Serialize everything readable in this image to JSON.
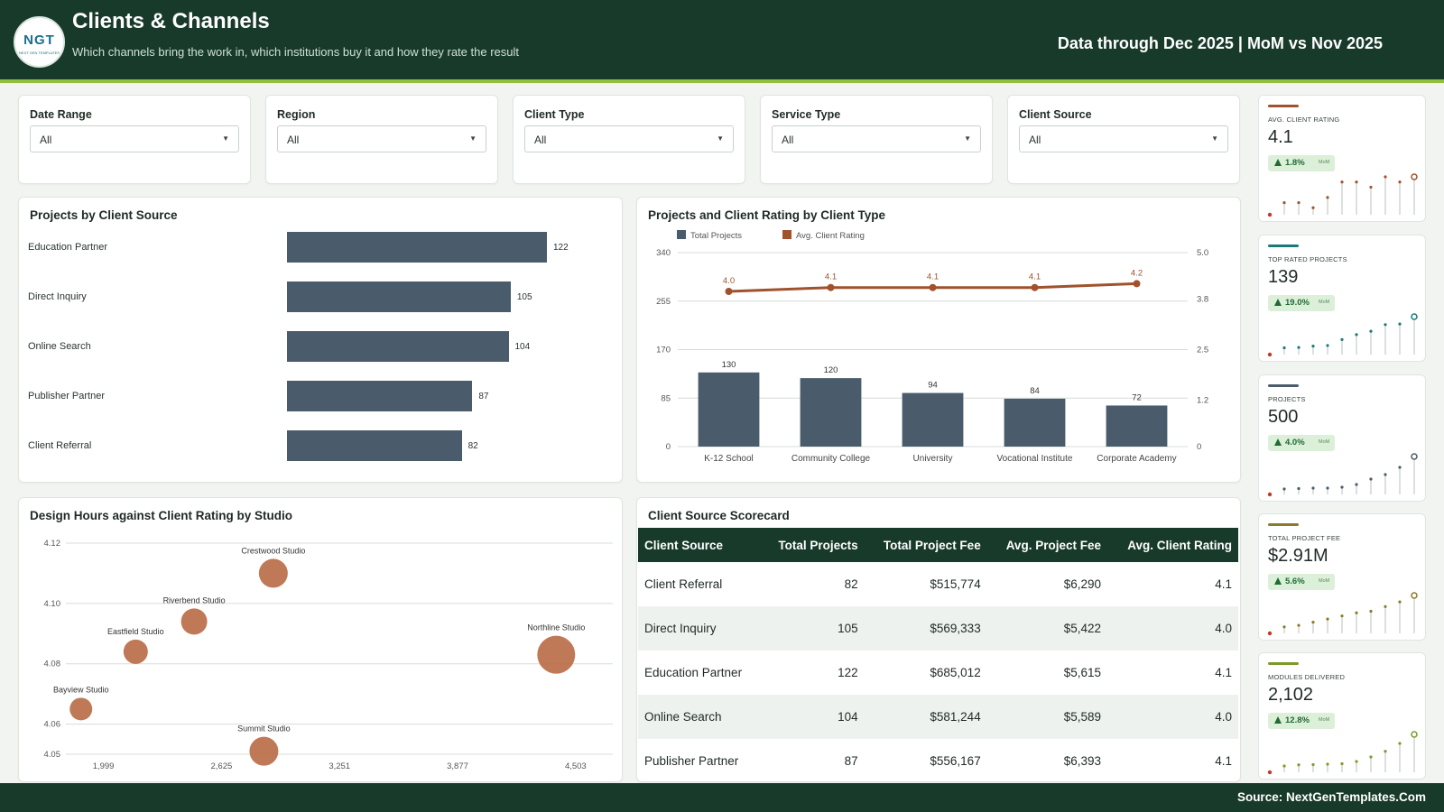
{
  "header": {
    "logo_text": "NGT",
    "logo_sub": "NEXT GEN TEMPLATES",
    "title": "Clients & Channels",
    "subtitle": "Which channels bring the work in, which institutions buy it and how they rate the result",
    "data_through": "Data through Dec 2025 | MoM vs Nov 2025"
  },
  "filters": [
    {
      "label": "Date Range",
      "value": "All"
    },
    {
      "label": "Region",
      "value": "All"
    },
    {
      "label": "Client Type",
      "value": "All"
    },
    {
      "label": "Service Type",
      "value": "All"
    },
    {
      "label": "Client Source",
      "value": "All"
    }
  ],
  "panels": {
    "bar_title": "Projects by Client Source",
    "combo_title": "Projects and Client Rating by Client Type",
    "bubble_title": "Design Hours against Client Rating by Studio",
    "table_title": "Client Source Scorecard"
  },
  "colors": {
    "header_bg": "#183a2a",
    "accent_line": "#8fbf3c",
    "bar": "#4a5c6b",
    "rating_line": "#a0522d",
    "bubble": "#b86a45"
  },
  "chart_data": [
    {
      "type": "bar",
      "orientation": "horizontal",
      "title": "Projects by Client Source",
      "categories": [
        "Education Partner",
        "Direct Inquiry",
        "Online Search",
        "Publisher Partner",
        "Client Referral"
      ],
      "values": [
        122,
        105,
        104,
        87,
        82
      ]
    },
    {
      "type": "bar",
      "title": "Projects and Client Rating by Client Type",
      "categories": [
        "K-12 School",
        "Community College",
        "University",
        "Vocational Institute",
        "Corporate Academy"
      ],
      "series": [
        {
          "name": "Total Projects",
          "type": "bar",
          "axis": "left",
          "values": [
            130,
            120,
            94,
            84,
            72
          ]
        },
        {
          "name": "Avg. Client Rating",
          "type": "line",
          "axis": "right",
          "values": [
            4.0,
            4.1,
            4.1,
            4.1,
            4.2
          ]
        }
      ],
      "ylim": [
        0,
        340
      ],
      "yticks": [
        "0",
        "85",
        "170",
        "255",
        "340"
      ],
      "y2lim": [
        0,
        5.0
      ],
      "y2ticks": [
        "0",
        "1.2",
        "2.5",
        "3.8",
        "5.0"
      ],
      "legend": "top-left",
      "grid": true
    },
    {
      "type": "scatter",
      "title": "Design Hours against Client Rating by Studio",
      "xlim": [
        1800,
        4700
      ],
      "xticks": [
        "1,999",
        "2,625",
        "3,251",
        "3,877",
        "4,503"
      ],
      "ylim": [
        4.05,
        4.12
      ],
      "yticks": [
        "4.05",
        "4.06",
        "4.08",
        "4.10",
        "4.12"
      ],
      "grid": true,
      "points": [
        {
          "label": "Crestwood Studio",
          "x": 2900,
          "y": 4.11,
          "size": 32
        },
        {
          "label": "Riverbend Studio",
          "x": 2480,
          "y": 4.094,
          "size": 29
        },
        {
          "label": "Eastfield Studio",
          "x": 2170,
          "y": 4.084,
          "size": 27
        },
        {
          "label": "Northline Studio",
          "x": 4400,
          "y": 4.083,
          "size": 42
        },
        {
          "label": "Bayview Studio",
          "x": 1880,
          "y": 4.065,
          "size": 25
        },
        {
          "label": "Summit Studio",
          "x": 2850,
          "y": 4.051,
          "size": 32
        }
      ]
    }
  ],
  "table": {
    "columns": [
      "Client Source",
      "Total Projects",
      "Total Project Fee",
      "Avg. Project Fee",
      "Avg. Client Rating"
    ],
    "rows": [
      [
        "Client Referral",
        "82",
        "$515,774",
        "$6,290",
        "4.1"
      ],
      [
        "Direct Inquiry",
        "105",
        "$569,333",
        "$5,422",
        "4.0"
      ],
      [
        "Education Partner",
        "122",
        "$685,012",
        "$5,615",
        "4.1"
      ],
      [
        "Online Search",
        "104",
        "$581,244",
        "$5,589",
        "4.0"
      ],
      [
        "Publisher Partner",
        "87",
        "$556,167",
        "$6,393",
        "4.1"
      ]
    ]
  },
  "kpis": [
    {
      "label": "AVG. CLIENT RATING",
      "value": "4.1",
      "change": "1.8%",
      "mom": "MoM",
      "color": "#a0522d",
      "spark": [
        3.5,
        3.7,
        3.7,
        3.6,
        3.8,
        4.1,
        4.1,
        4.0,
        4.2,
        4.1,
        4.2
      ]
    },
    {
      "label": "TOP RATED PROJECTS",
      "value": "139",
      "change": "19.0%",
      "mom": "MoM",
      "color": "#1a7a7a",
      "spark": [
        30,
        45,
        46,
        50,
        52,
        70,
        85,
        95,
        115,
        117,
        139
      ]
    },
    {
      "label": "PROJECTS",
      "value": "500",
      "change": "4.0%",
      "mom": "MoM",
      "color": "#4a5c6b",
      "spark": [
        100,
        140,
        145,
        150,
        150,
        160,
        190,
        250,
        300,
        380,
        500
      ]
    },
    {
      "label": "TOTAL PROJECT FEE",
      "value": "$2.91M",
      "change": "5.6%",
      "mom": "MoM",
      "color": "#8a7a2a",
      "spark": [
        0.6,
        0.9,
        1.0,
        1.2,
        1.4,
        1.6,
        1.8,
        1.9,
        2.2,
        2.5,
        2.91
      ]
    },
    {
      "label": "MODULES DELIVERED",
      "value": "2,102",
      "change": "12.8%",
      "mom": "MoM",
      "color": "#7a9a2a",
      "spark": [
        500,
        700,
        750,
        760,
        780,
        800,
        900,
        1100,
        1350,
        1700,
        2102
      ]
    }
  ],
  "footer": {
    "source": "Source: NextGenTemplates.Com"
  }
}
